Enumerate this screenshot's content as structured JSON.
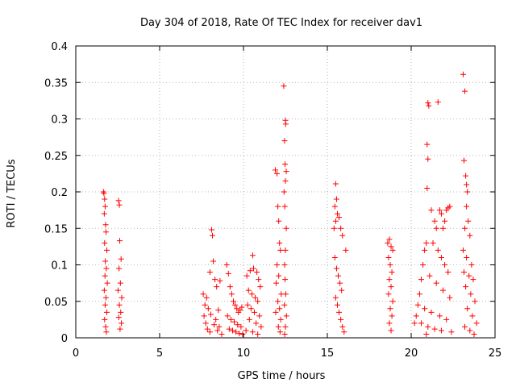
{
  "chart_data": {
    "type": "scatter",
    "title": "Day 304 of 2018, Rate Of TEC Index for receiver dav1",
    "xlabel": "GPS time / hours",
    "ylabel": "ROTI / TECUs",
    "xlim": [
      0,
      25
    ],
    "ylim": [
      0,
      0.4
    ],
    "x_ticks": [
      "0",
      "5",
      "10",
      "15",
      "20",
      "25"
    ],
    "y_ticks": [
      "0",
      "0.05",
      "0.1",
      "0.15",
      "0.2",
      "0.25",
      "0.3",
      "0.35",
      "0.4"
    ],
    "grid": true,
    "legend": "none",
    "marker": "+",
    "marker_color": "#ff0000",
    "series": [
      {
        "values": [
          [
            1.65,
            0.2
          ],
          [
            1.68,
            0.198
          ],
          [
            1.72,
            0.19
          ],
          [
            1.75,
            0.18
          ],
          [
            1.7,
            0.17
          ],
          [
            1.78,
            0.155
          ],
          [
            1.8,
            0.145
          ],
          [
            1.72,
            0.13
          ],
          [
            1.85,
            0.12
          ],
          [
            1.76,
            0.105
          ],
          [
            1.82,
            0.095
          ],
          [
            1.74,
            0.085
          ],
          [
            1.88,
            0.075
          ],
          [
            1.7,
            0.065
          ],
          [
            1.8,
            0.055
          ],
          [
            1.75,
            0.045
          ],
          [
            1.85,
            0.035
          ],
          [
            1.72,
            0.025
          ],
          [
            1.78,
            0.015
          ],
          [
            1.82,
            0.008
          ],
          [
            2.55,
            0.188
          ],
          [
            2.6,
            0.182
          ],
          [
            2.62,
            0.133
          ],
          [
            2.7,
            0.108
          ],
          [
            2.58,
            0.095
          ],
          [
            2.66,
            0.075
          ],
          [
            2.52,
            0.065
          ],
          [
            2.74,
            0.055
          ],
          [
            2.6,
            0.045
          ],
          [
            2.68,
            0.035
          ],
          [
            2.56,
            0.028
          ],
          [
            2.72,
            0.02
          ],
          [
            2.64,
            0.012
          ],
          [
            7.6,
            0.06
          ],
          [
            7.8,
            0.055
          ],
          [
            8.0,
            0.09
          ],
          [
            8.1,
            0.148
          ],
          [
            8.15,
            0.14
          ],
          [
            8.2,
            0.105
          ],
          [
            8.3,
            0.08
          ],
          [
            8.4,
            0.07
          ],
          [
            7.7,
            0.045
          ],
          [
            7.9,
            0.04
          ],
          [
            8.5,
            0.038
          ],
          [
            8.6,
            0.078
          ],
          [
            7.65,
            0.03
          ],
          [
            8.05,
            0.032
          ],
          [
            8.35,
            0.025
          ],
          [
            7.75,
            0.02
          ],
          [
            8.25,
            0.018
          ],
          [
            8.55,
            0.015
          ],
          [
            7.85,
            0.012
          ],
          [
            8.45,
            0.01
          ],
          [
            8.0,
            0.008
          ],
          [
            8.7,
            0.005
          ],
          [
            9.0,
            0.1
          ],
          [
            9.1,
            0.088
          ],
          [
            9.2,
            0.07
          ],
          [
            9.3,
            0.06
          ],
          [
            9.4,
            0.05
          ],
          [
            9.5,
            0.045
          ],
          [
            9.6,
            0.04
          ],
          [
            9.7,
            0.035
          ],
          [
            9.8,
            0.038
          ],
          [
            9.9,
            0.042
          ],
          [
            9.05,
            0.03
          ],
          [
            9.25,
            0.025
          ],
          [
            9.45,
            0.022
          ],
          [
            9.65,
            0.018
          ],
          [
            9.85,
            0.015
          ],
          [
            9.15,
            0.012
          ],
          [
            9.35,
            0.01
          ],
          [
            9.55,
            0.008
          ],
          [
            9.75,
            0.006
          ],
          [
            9.95,
            0.005
          ],
          [
            10.2,
            0.085
          ],
          [
            10.4,
            0.092
          ],
          [
            10.55,
            0.113
          ],
          [
            10.6,
            0.095
          ],
          [
            10.8,
            0.09
          ],
          [
            10.9,
            0.08
          ],
          [
            11.0,
            0.07
          ],
          [
            10.3,
            0.065
          ],
          [
            10.5,
            0.06
          ],
          [
            10.7,
            0.055
          ],
          [
            10.85,
            0.05
          ],
          [
            10.25,
            0.045
          ],
          [
            10.45,
            0.04
          ],
          [
            10.65,
            0.035
          ],
          [
            10.95,
            0.03
          ],
          [
            10.35,
            0.025
          ],
          [
            10.75,
            0.02
          ],
          [
            11.05,
            0.015
          ],
          [
            10.15,
            0.01
          ],
          [
            10.55,
            0.008
          ],
          [
            10.85,
            0.005
          ],
          [
            11.9,
            0.23
          ],
          [
            12.0,
            0.225
          ],
          [
            12.05,
            0.18
          ],
          [
            12.1,
            0.16
          ],
          [
            12.15,
            0.13
          ],
          [
            12.2,
            0.12
          ],
          [
            12.0,
            0.1
          ],
          [
            12.1,
            0.085
          ],
          [
            11.95,
            0.075
          ],
          [
            12.25,
            0.06
          ],
          [
            12.05,
            0.05
          ],
          [
            12.15,
            0.04
          ],
          [
            11.92,
            0.035
          ],
          [
            12.22,
            0.025
          ],
          [
            12.08,
            0.015
          ],
          [
            12.18,
            0.008
          ],
          [
            12.4,
            0.345
          ],
          [
            12.45,
            0.27
          ],
          [
            12.5,
            0.298
          ],
          [
            12.52,
            0.293
          ],
          [
            12.48,
            0.238
          ],
          [
            12.55,
            0.228
          ],
          [
            12.5,
            0.215
          ],
          [
            12.42,
            0.2
          ],
          [
            12.46,
            0.18
          ],
          [
            12.55,
            0.15
          ],
          [
            12.5,
            0.12
          ],
          [
            12.45,
            0.1
          ],
          [
            12.48,
            0.08
          ],
          [
            12.52,
            0.06
          ],
          [
            12.44,
            0.045
          ],
          [
            12.56,
            0.03
          ],
          [
            12.5,
            0.015
          ],
          [
            12.46,
            0.005
          ],
          [
            15.4,
            0.15
          ],
          [
            15.5,
            0.16
          ],
          [
            15.45,
            0.18
          ],
          [
            15.55,
            0.19
          ],
          [
            15.5,
            0.211
          ],
          [
            15.6,
            0.17
          ],
          [
            15.7,
            0.165
          ],
          [
            15.8,
            0.15
          ],
          [
            15.9,
            0.14
          ],
          [
            16.1,
            0.12
          ],
          [
            15.45,
            0.11
          ],
          [
            15.55,
            0.095
          ],
          [
            15.65,
            0.085
          ],
          [
            15.75,
            0.075
          ],
          [
            15.85,
            0.065
          ],
          [
            15.5,
            0.055
          ],
          [
            15.6,
            0.045
          ],
          [
            15.7,
            0.035
          ],
          [
            15.8,
            0.025
          ],
          [
            15.9,
            0.015
          ],
          [
            16.0,
            0.008
          ],
          [
            18.6,
            0.13
          ],
          [
            18.7,
            0.135
          ],
          [
            18.8,
            0.125
          ],
          [
            18.9,
            0.12
          ],
          [
            18.65,
            0.11
          ],
          [
            18.75,
            0.1
          ],
          [
            18.85,
            0.09
          ],
          [
            18.7,
            0.08
          ],
          [
            18.8,
            0.07
          ],
          [
            18.65,
            0.06
          ],
          [
            18.9,
            0.05
          ],
          [
            18.75,
            0.04
          ],
          [
            18.85,
            0.03
          ],
          [
            18.7,
            0.02
          ],
          [
            18.8,
            0.01
          ],
          [
            20.2,
            0.02
          ],
          [
            20.3,
            0.03
          ],
          [
            20.5,
            0.06
          ],
          [
            20.6,
            0.08
          ],
          [
            20.7,
            0.1
          ],
          [
            20.8,
            0.12
          ],
          [
            20.9,
            0.13
          ],
          [
            20.95,
            0.205
          ],
          [
            21.0,
            0.245
          ],
          [
            20.95,
            0.265
          ],
          [
            21.0,
            0.322
          ],
          [
            21.05,
            0.318
          ],
          [
            21.2,
            0.175
          ],
          [
            21.4,
            0.16
          ],
          [
            21.5,
            0.15
          ],
          [
            21.6,
            0.323
          ],
          [
            21.7,
            0.175
          ],
          [
            21.8,
            0.17
          ],
          [
            21.9,
            0.15
          ],
          [
            22.0,
            0.16
          ],
          [
            22.1,
            0.175
          ],
          [
            22.2,
            0.178
          ],
          [
            22.3,
            0.18
          ],
          [
            21.3,
            0.13
          ],
          [
            21.6,
            0.12
          ],
          [
            21.8,
            0.11
          ],
          [
            22.0,
            0.1
          ],
          [
            22.2,
            0.09
          ],
          [
            21.1,
            0.085
          ],
          [
            21.5,
            0.075
          ],
          [
            21.9,
            0.065
          ],
          [
            22.3,
            0.055
          ],
          [
            20.4,
            0.045
          ],
          [
            20.8,
            0.04
          ],
          [
            21.2,
            0.035
          ],
          [
            21.7,
            0.03
          ],
          [
            22.1,
            0.025
          ],
          [
            20.6,
            0.02
          ],
          [
            21.0,
            0.015
          ],
          [
            21.4,
            0.012
          ],
          [
            21.8,
            0.01
          ],
          [
            22.4,
            0.008
          ],
          [
            20.9,
            0.005
          ],
          [
            23.1,
            0.361
          ],
          [
            23.2,
            0.338
          ],
          [
            23.15,
            0.243
          ],
          [
            23.25,
            0.222
          ],
          [
            23.3,
            0.21
          ],
          [
            23.35,
            0.2
          ],
          [
            23.3,
            0.18
          ],
          [
            23.4,
            0.16
          ],
          [
            23.2,
            0.15
          ],
          [
            23.5,
            0.14
          ],
          [
            23.1,
            0.12
          ],
          [
            23.3,
            0.11
          ],
          [
            23.6,
            0.1
          ],
          [
            23.15,
            0.09
          ],
          [
            23.45,
            0.085
          ],
          [
            23.7,
            0.08
          ],
          [
            23.25,
            0.07
          ],
          [
            23.55,
            0.06
          ],
          [
            23.8,
            0.05
          ],
          [
            23.35,
            0.04
          ],
          [
            23.65,
            0.03
          ],
          [
            23.9,
            0.02
          ],
          [
            23.2,
            0.015
          ],
          [
            23.5,
            0.01
          ],
          [
            23.75,
            0.005
          ]
        ]
      }
    ]
  }
}
